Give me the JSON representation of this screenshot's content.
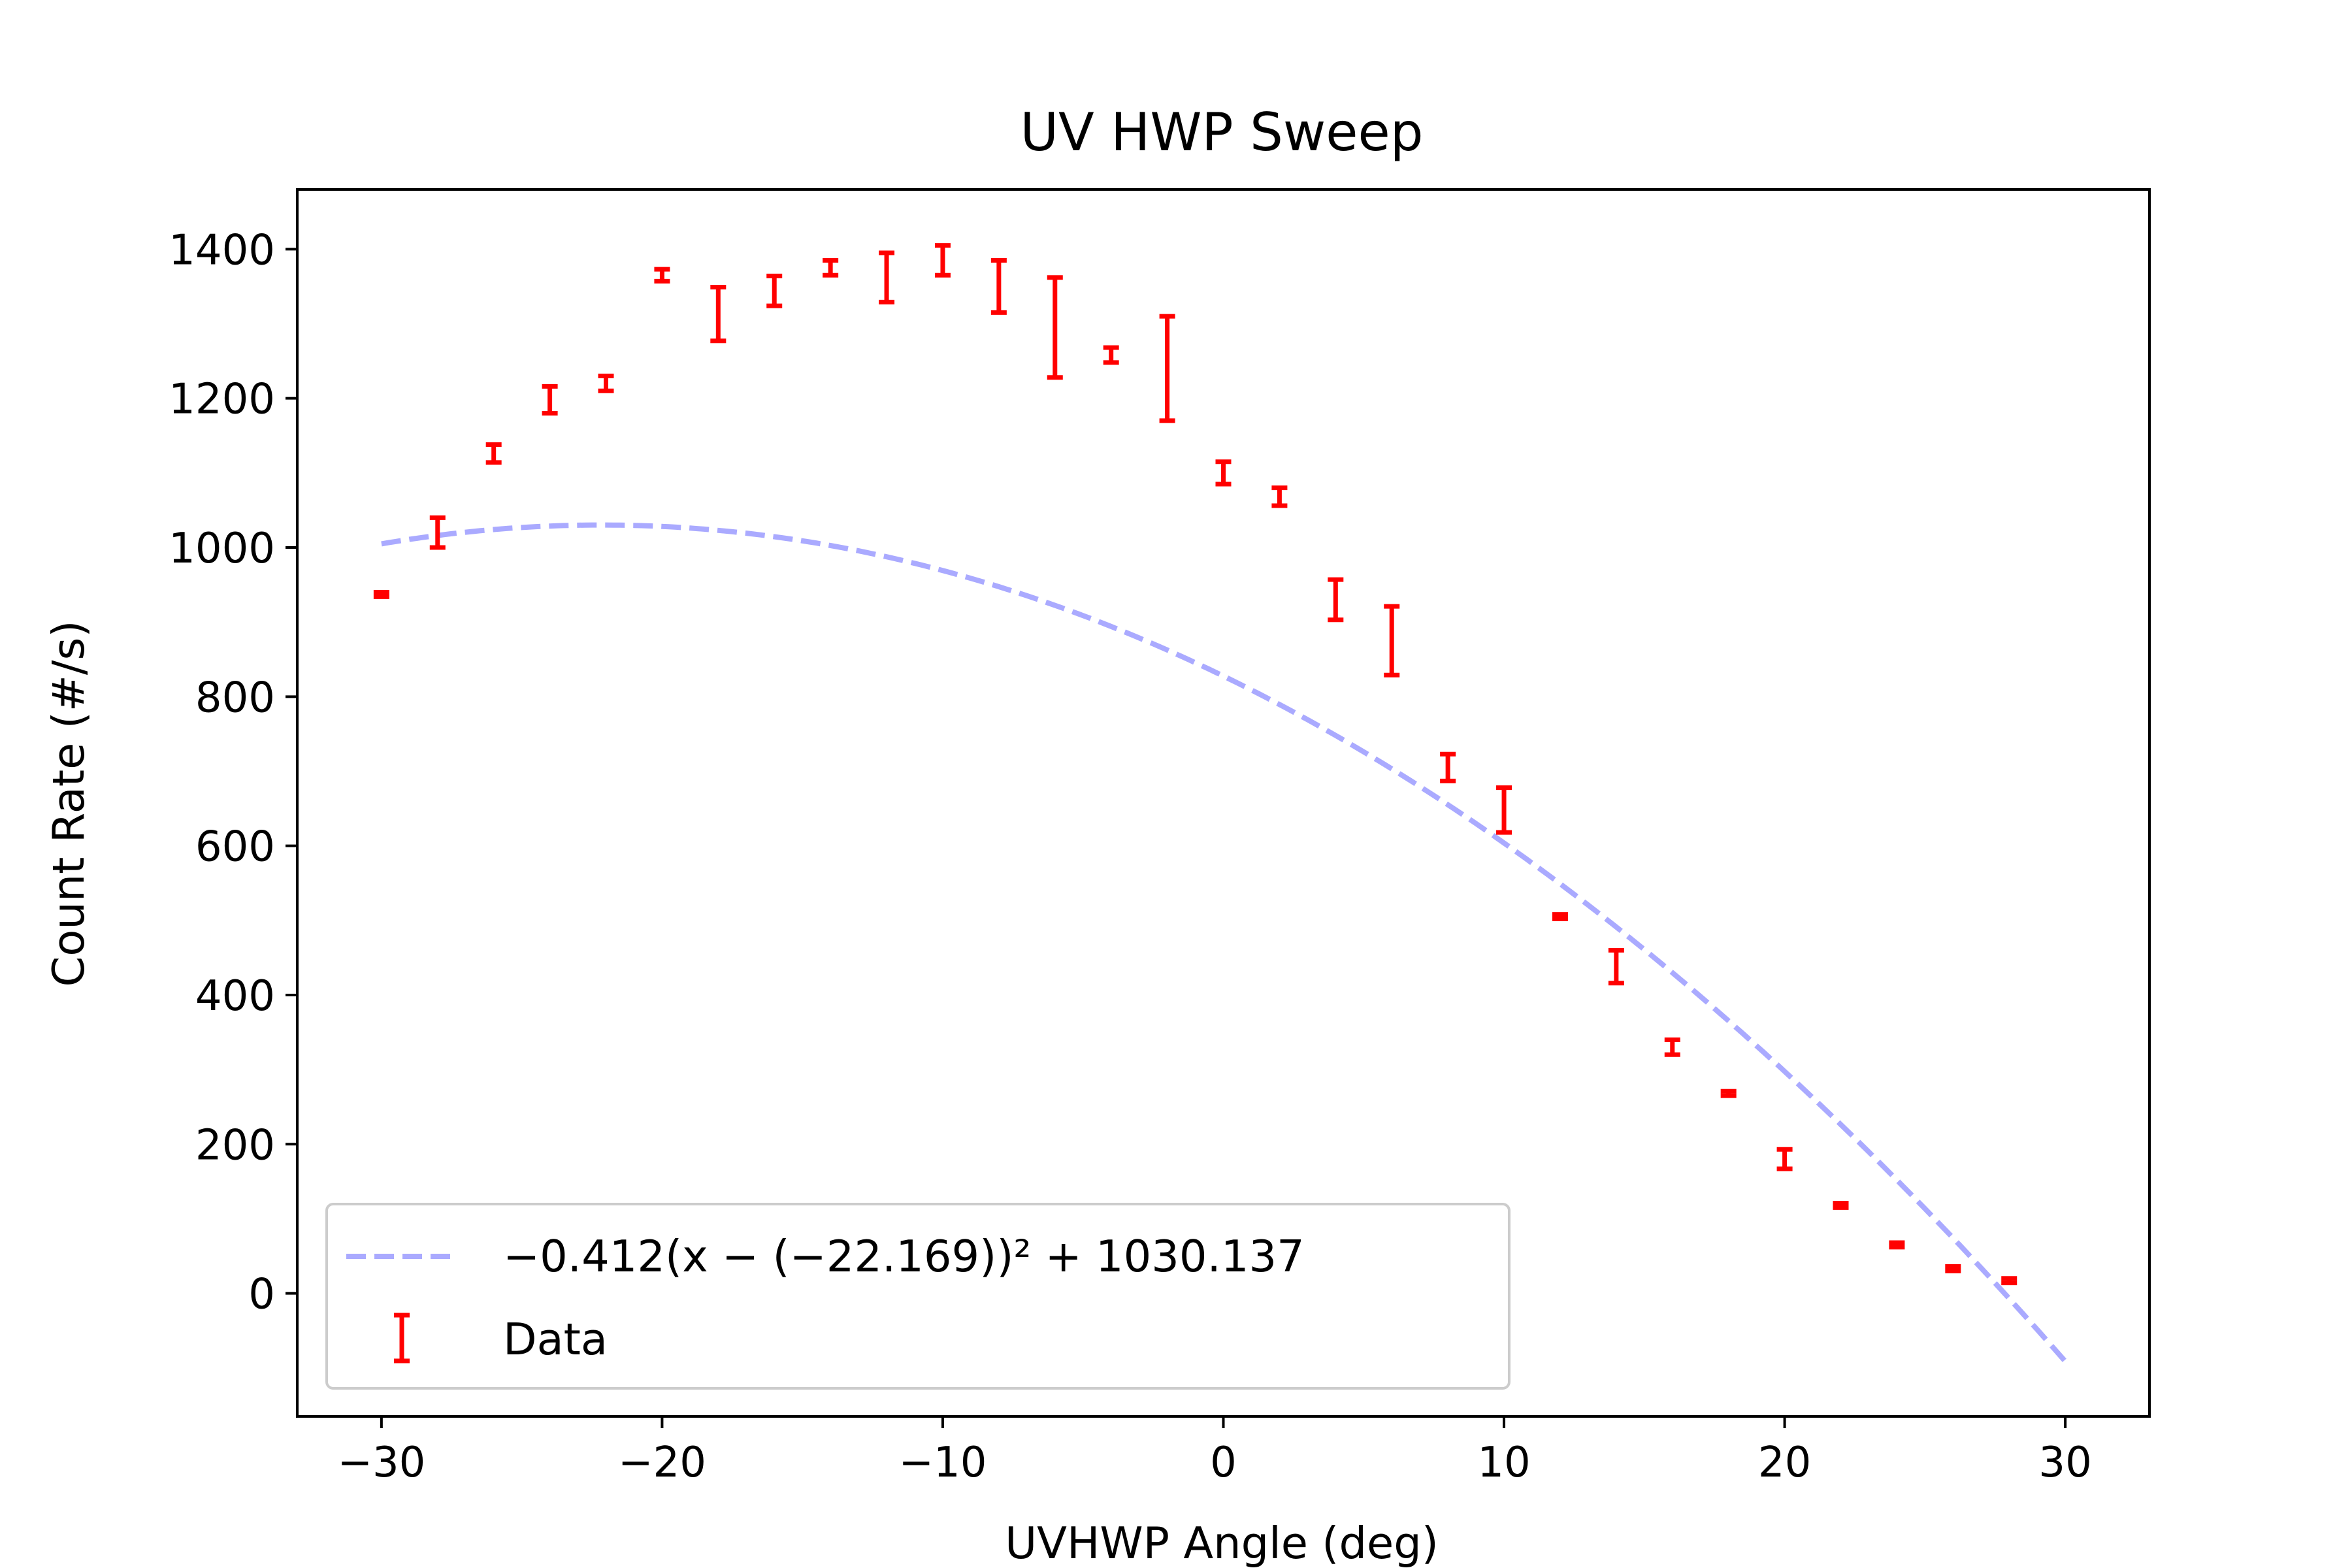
{
  "chart_data": {
    "type": "scatter",
    "title": "UV HWP Sweep",
    "xlabel": "UVHWP Angle (deg)",
    "ylabel": "Count Rate (#/s)",
    "xlim": [
      -33,
      33
    ],
    "ylim": [
      -165,
      1480
    ],
    "xticks": [
      -30,
      -20,
      -10,
      0,
      10,
      20,
      30
    ],
    "xtick_labels": [
      "−30",
      "−20",
      "−10",
      "0",
      "10",
      "20",
      "30"
    ],
    "yticks": [
      0,
      200,
      400,
      600,
      800,
      1000,
      1200,
      1400
    ],
    "ytick_labels": [
      "0",
      "200",
      "400",
      "600",
      "800",
      "1000",
      "1200",
      "1400"
    ],
    "grid": false,
    "legend_position": "lower-left",
    "series": [
      {
        "name": "−0.412(x − (−22.169))² + 1030.137",
        "kind": "fit-curve",
        "style": "dashed",
        "color": "#aaaaff",
        "a": -0.412,
        "h": -22.169,
        "k": 1030.137,
        "x_range": [
          -30,
          30
        ]
      },
      {
        "name": "Data",
        "kind": "errorbar",
        "color": "#ff0000",
        "points": [
          {
            "x": -30,
            "y": 937,
            "err": 3
          },
          {
            "x": -28,
            "y": 1020,
            "err": 20
          },
          {
            "x": -26,
            "y": 1126,
            "err": 12
          },
          {
            "x": -24,
            "y": 1198,
            "err": 18
          },
          {
            "x": -22,
            "y": 1220,
            "err": 10
          },
          {
            "x": -20,
            "y": 1365,
            "err": 8
          },
          {
            "x": -18,
            "y": 1313,
            "err": 36
          },
          {
            "x": -16,
            "y": 1344,
            "err": 20
          },
          {
            "x": -14,
            "y": 1375,
            "err": 10
          },
          {
            "x": -12,
            "y": 1362,
            "err": 33
          },
          {
            "x": -10,
            "y": 1385,
            "err": 20
          },
          {
            "x": -8,
            "y": 1350,
            "err": 35
          },
          {
            "x": -6,
            "y": 1295,
            "err": 67
          },
          {
            "x": -4,
            "y": 1258,
            "err": 10
          },
          {
            "x": -2,
            "y": 1240,
            "err": 70
          },
          {
            "x": 0,
            "y": 1100,
            "err": 15
          },
          {
            "x": 2,
            "y": 1068,
            "err": 12
          },
          {
            "x": 4,
            "y": 930,
            "err": 27
          },
          {
            "x": 6,
            "y": 875,
            "err": 46
          },
          {
            "x": 8,
            "y": 705,
            "err": 18
          },
          {
            "x": 10,
            "y": 648,
            "err": 30
          },
          {
            "x": 12,
            "y": 505,
            "err": 3
          },
          {
            "x": 14,
            "y": 438,
            "err": 22
          },
          {
            "x": 16,
            "y": 330,
            "err": 10
          },
          {
            "x": 18,
            "y": 268,
            "err": 3
          },
          {
            "x": 20,
            "y": 180,
            "err": 13
          },
          {
            "x": 22,
            "y": 118,
            "err": 3
          },
          {
            "x": 24,
            "y": 65,
            "err": 3
          },
          {
            "x": 26,
            "y": 33,
            "err": 3
          },
          {
            "x": 28,
            "y": 17,
            "err": 3
          }
        ]
      }
    ]
  }
}
